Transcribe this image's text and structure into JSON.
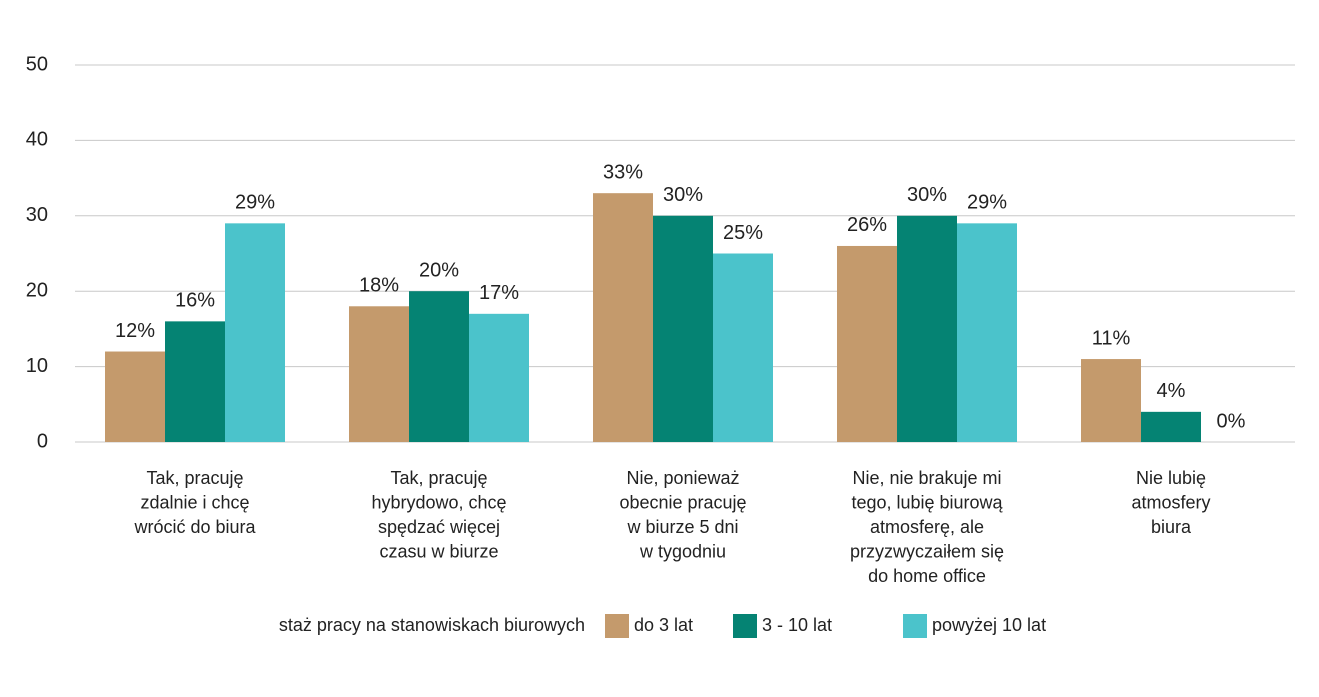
{
  "chart_data": {
    "type": "bar",
    "categories": [
      [
        "Tak, pracuję",
        "zdalnie i chcę",
        "wrócić do biura"
      ],
      [
        "Tak, pracuję",
        "hybrydowo, chcę",
        "spędzać więcej",
        "czasu w biurze"
      ],
      [
        "Nie, ponieważ",
        "obecnie pracuję",
        "w biurze 5 dni",
        "w tygodniu"
      ],
      [
        "Nie, nie brakuje mi",
        "tego, lubię biurową",
        "atmosferę, ale",
        "przyzwyczaiłem się",
        "do home office"
      ],
      [
        "Nie lubię",
        "atmosfery",
        "biura"
      ]
    ],
    "series": [
      {
        "name": "do 3 lat",
        "color": "#c49a6c",
        "values": [
          12,
          18,
          33,
          26,
          11
        ],
        "value_labels": [
          "12%",
          "18%",
          "33%",
          "26%",
          "11%"
        ]
      },
      {
        "name": "3 - 10 lat",
        "color": "#058373",
        "values": [
          16,
          20,
          30,
          30,
          4
        ],
        "value_labels": [
          "16%",
          "20%",
          "30%",
          "30%",
          "4%"
        ]
      },
      {
        "name": "powyżej 10 lat",
        "color": "#4bc3cb",
        "values": [
          29,
          17,
          25,
          29,
          0
        ],
        "value_labels": [
          "29%",
          "17%",
          "25%",
          "29%",
          "0%"
        ]
      }
    ],
    "legend_title": "staż pracy na stanowiskach biurowych",
    "ylim": [
      0,
      50
    ],
    "yticks": [
      0,
      10,
      20,
      30,
      40,
      50
    ],
    "grid": true
  }
}
